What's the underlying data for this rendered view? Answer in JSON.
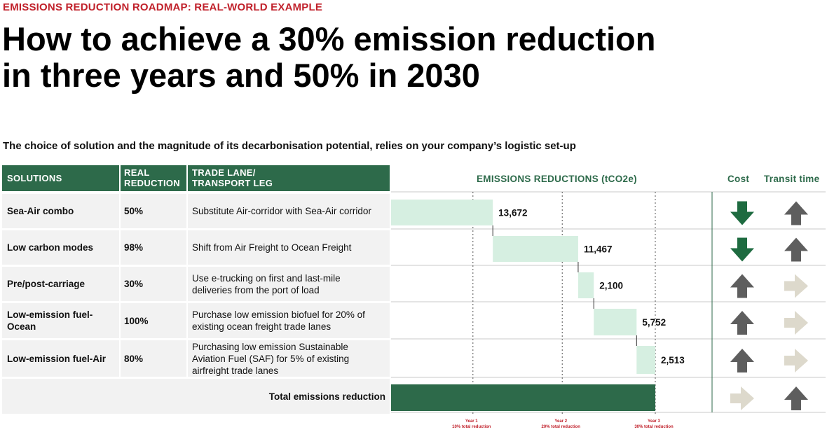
{
  "eyebrow": "EMISSIONS REDUCTION ROADMAP: REAL-WORLD EXAMPLE",
  "headline_line1": "How to achieve a 30% emission reduction",
  "headline_line2": "in three years and 50% in 2030",
  "subtitle": "The choice of solution and the magnitude of its decarbonisation potential, relies on your company’s logistic set-up",
  "table": {
    "headers": {
      "solutions": "SOLUTIONS",
      "real_reduction_1": "REAL",
      "real_reduction_2": "REDUCTION",
      "trade_lane_1": "TRADE LANE/",
      "trade_lane_2": "TRANSPORT LEG"
    },
    "rows": [
      {
        "solution": "Sea-Air combo",
        "reduction": "50%",
        "lane": "Substitute Air-corridor with Sea-Air corridor"
      },
      {
        "solution": "Low carbon modes",
        "reduction": "98%",
        "lane": "Shift from Air Freight to Ocean Freight"
      },
      {
        "solution": "Pre/post-carriage",
        "reduction": "30%",
        "lane": "Use e-trucking on first and last-mile deliveries from the port of load"
      },
      {
        "solution": "Low-emission fuel-Ocean",
        "reduction": "100%",
        "lane": "Purchase low emission biofuel for 20% of existing ocean freight trade lanes"
      },
      {
        "solution": "Low-emission fuel-Air",
        "reduction": "80%",
        "lane": "Purchasing low emission Sustainable Aviation Fuel (SAF) for 5% of existing airfreight trade lanes"
      }
    ],
    "total_label": "Total emissions reduction"
  },
  "columns": {
    "emissions": "EMISSIONS REDUCTIONS (tCO2e)",
    "cost": "Cost",
    "transit": "Transit time"
  },
  "colors": {
    "brand_green": "#2d6a4a",
    "bar_light": "#d6efe1",
    "arrow_green": "#1e6b40",
    "arrow_gray": "#5e5e5e",
    "arrow_beige": "#ddd9cc",
    "eyebrow_red": "#c0202a"
  },
  "chart_data": {
    "type": "bar",
    "subtype": "waterfall",
    "title": "EMISSIONS REDUCTIONS (tCO2e)",
    "categories": [
      "Sea-Air combo",
      "Low carbon modes",
      "Pre/post-carriage",
      "Low-emission fuel-Ocean",
      "Low-emission fuel-Air",
      "Total emissions reduction"
    ],
    "values": [
      13672,
      11467,
      2100,
      5752,
      2513,
      35504
    ],
    "labels": [
      "13,672",
      "11,467",
      "2,100",
      "5,752",
      "2,513"
    ],
    "milestones": [
      {
        "name": "Year 1",
        "note": "10% total reduction",
        "value": 11000
      },
      {
        "name": "Year 2",
        "note": "20% total reduction",
        "value": 23000
      },
      {
        "name": "Year 3",
        "note": "30% total reduction",
        "value": 35504
      }
    ],
    "cost_direction": [
      "down",
      "down",
      "up",
      "up",
      "up",
      "right"
    ],
    "cost_color": [
      "green",
      "green",
      "gray",
      "gray",
      "gray",
      "beige"
    ],
    "transit_direction": [
      "up",
      "up",
      "right",
      "right",
      "right",
      "up"
    ],
    "transit_color": [
      "gray",
      "gray",
      "beige",
      "beige",
      "beige",
      "gray"
    ]
  }
}
